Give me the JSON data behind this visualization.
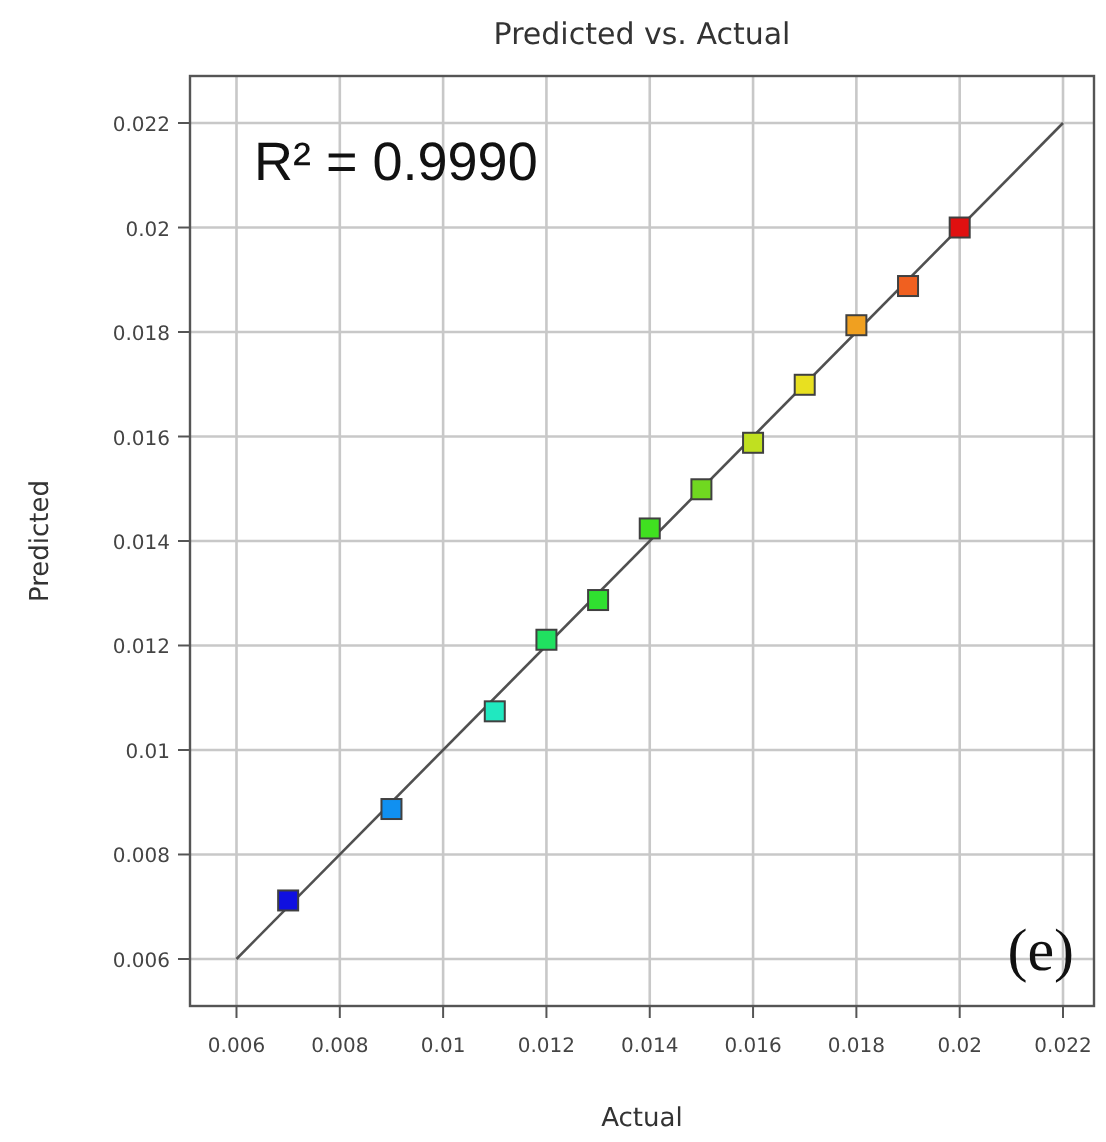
{
  "chart_data": {
    "type": "scatter",
    "title": "Predicted vs. Actual",
    "xlabel": "Actual",
    "ylabel": "Predicted",
    "x": [
      0.007,
      0.009,
      0.011,
      0.012,
      0.013,
      0.014,
      0.015,
      0.016,
      0.017,
      0.018,
      0.019,
      0.02
    ],
    "series": [
      {
        "marker": "square",
        "values": [
          0.00712,
          0.00887,
          0.01074,
          0.01211,
          0.01287,
          0.01424,
          0.01499,
          0.01588,
          0.01699,
          0.01813,
          0.01888,
          0.02
        ],
        "colors": [
          "#1010e0",
          "#1090f0",
          "#20e8c0",
          "#20e060",
          "#30e030",
          "#40e020",
          "#70d820",
          "#c0e020",
          "#e8e020",
          "#f0a020",
          "#f06020",
          "#e01010"
        ]
      },
      {
        "type": "line",
        "color": "#505050",
        "x": [
          0.006,
          0.022
        ],
        "values": [
          0.006,
          0.022
        ]
      }
    ],
    "xlim": [
      0.0051,
      0.0226
    ],
    "ylim": [
      0.0051,
      0.0229
    ],
    "xticks": [
      0.006,
      0.008,
      0.01,
      0.012,
      0.014,
      0.016,
      0.018,
      0.02,
      0.022
    ],
    "yticks": [
      0.006,
      0.008,
      0.01,
      0.012,
      0.014,
      0.016,
      0.018,
      0.02,
      0.022
    ],
    "grid": true,
    "annotations": [
      "R² = 0.9990",
      "(e)"
    ]
  }
}
